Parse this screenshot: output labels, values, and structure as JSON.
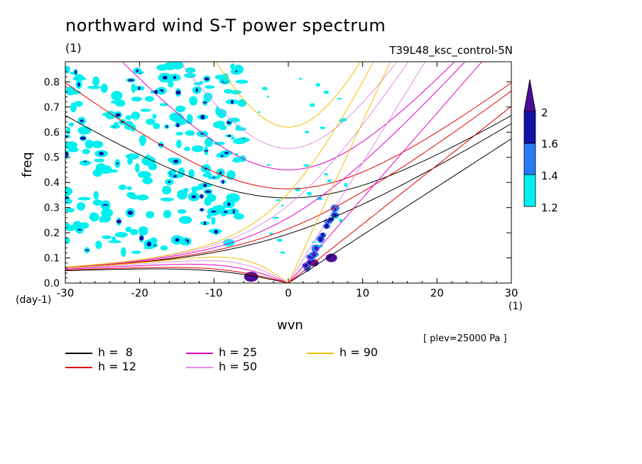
{
  "chart_data": {
    "type": "line",
    "title": "northward wind S-T power spectrum",
    "subtitle_left": "(1)",
    "subtitle_right": "T39L48_ksc_control-5N",
    "xlabel": "wvn",
    "ylabel": "freq",
    "x_unit": "(1)",
    "y_unit": "(day-1)",
    "annotation": "[ plev=25000 Pa ]",
    "xlim": [
      -30,
      30
    ],
    "ylim": [
      0,
      0.88
    ],
    "xticks": [
      "-30",
      "-20",
      "-10",
      "0",
      "10",
      "20",
      "30"
    ],
    "yticks": [
      "0.0",
      "0.1",
      "0.2",
      "0.3",
      "0.4",
      "0.5",
      "0.6",
      "0.7",
      "0.8"
    ],
    "xtick_values": [
      -30,
      -20,
      -10,
      0,
      10,
      20,
      30
    ],
    "ytick_values": [
      0,
      0.1,
      0.2,
      0.3,
      0.4,
      0.5,
      0.6,
      0.7,
      0.8
    ],
    "colorbar": {
      "levels": [
        "1.2",
        "1.4",
        "1.6",
        "2"
      ],
      "colors": [
        "#00f0f0",
        "#2a7af5",
        "#1313a8",
        "#4b0d96"
      ]
    },
    "series": [
      {
        "name": "h =  8",
        "h": 8,
        "color": "#000000"
      },
      {
        "name": "h = 12",
        "h": 12,
        "color": "#e00000"
      },
      {
        "name": "h = 25",
        "h": 25,
        "color": "#e000c0"
      },
      {
        "name": "h = 50",
        "h": 50,
        "color": "#e090e0"
      },
      {
        "name": "h = 90",
        "h": 90,
        "color": "#f0c000"
      }
    ]
  }
}
